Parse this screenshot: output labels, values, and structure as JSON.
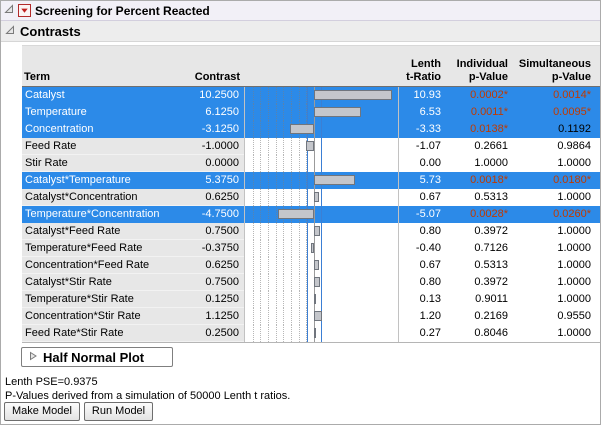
{
  "colors": {
    "selection_blue": "#2C8AE8",
    "significant_orange": "#C03A00",
    "bar_fill": "#C4C6CB",
    "bar_border": "#70757D",
    "ref_line_blue": "#3B7FD4"
  },
  "title_bar": {
    "title": "Screening for Percent Reacted"
  },
  "sections": {
    "contrasts_title": "Contrasts",
    "half_normal_plot_title": "Half Normal Plot"
  },
  "table": {
    "headers": {
      "term": "Term",
      "contrast": "Contrast",
      "lenth_t_ratio": "Lenth\nt-Ratio",
      "individual_p_value": "Individual\np-Value",
      "simultaneous_p_value": "Simultaneous\np-Value"
    },
    "chart": {
      "type": "bar",
      "orientation": "horizontal",
      "xmin": -9,
      "xmax": 11,
      "gridlines": [
        -8,
        -7,
        -6,
        -5,
        -4,
        -3,
        -2,
        -1
      ],
      "ref_lines": [
        -0.9375,
        0.9375
      ],
      "zero_line": 0
    },
    "rows": [
      {
        "term": "Catalyst",
        "contrast": "10.2500",
        "value": 10.25,
        "t_ratio": "10.93",
        "individual_p": "0.0002*",
        "simultaneous_p": "0.0014*",
        "selected": true,
        "ip_sig": true,
        "sp_sig": true
      },
      {
        "term": "Temperature",
        "contrast": "6.1250",
        "value": 6.125,
        "t_ratio": "6.53",
        "individual_p": "0.0011*",
        "simultaneous_p": "0.0095*",
        "selected": true,
        "ip_sig": true,
        "sp_sig": true
      },
      {
        "term": "Concentration",
        "contrast": "-3.1250",
        "value": -3.125,
        "t_ratio": "-3.33",
        "individual_p": "0.0138*",
        "simultaneous_p": "0.1192",
        "selected": true,
        "ip_sig": true,
        "sp_sig": false
      },
      {
        "term": "Feed Rate",
        "contrast": "-1.0000",
        "value": -1.0,
        "t_ratio": "-1.07",
        "individual_p": "0.2661",
        "simultaneous_p": "0.9864",
        "selected": false,
        "ip_sig": false,
        "sp_sig": false
      },
      {
        "term": "Stir Rate",
        "contrast": "0.0000",
        "value": 0.0,
        "t_ratio": "0.00",
        "individual_p": "1.0000",
        "simultaneous_p": "1.0000",
        "selected": false,
        "ip_sig": false,
        "sp_sig": false
      },
      {
        "term": "Catalyst*Temperature",
        "contrast": "5.3750",
        "value": 5.375,
        "t_ratio": "5.73",
        "individual_p": "0.0018*",
        "simultaneous_p": "0.0180*",
        "selected": true,
        "ip_sig": true,
        "sp_sig": true
      },
      {
        "term": "Catalyst*Concentration",
        "contrast": "0.6250",
        "value": 0.625,
        "t_ratio": "0.67",
        "individual_p": "0.5313",
        "simultaneous_p": "1.0000",
        "selected": false,
        "ip_sig": false,
        "sp_sig": false
      },
      {
        "term": "Temperature*Concentration",
        "contrast": "-4.7500",
        "value": -4.75,
        "t_ratio": "-5.07",
        "individual_p": "0.0028*",
        "simultaneous_p": "0.0260*",
        "selected": true,
        "ip_sig": true,
        "sp_sig": true
      },
      {
        "term": "Catalyst*Feed Rate",
        "contrast": "0.7500",
        "value": 0.75,
        "t_ratio": "0.80",
        "individual_p": "0.3972",
        "simultaneous_p": "1.0000",
        "selected": false,
        "ip_sig": false,
        "sp_sig": false
      },
      {
        "term": "Temperature*Feed Rate",
        "contrast": "-0.3750",
        "value": -0.375,
        "t_ratio": "-0.40",
        "individual_p": "0.7126",
        "simultaneous_p": "1.0000",
        "selected": false,
        "ip_sig": false,
        "sp_sig": false
      },
      {
        "term": "Concentration*Feed Rate",
        "contrast": "0.6250",
        "value": 0.625,
        "t_ratio": "0.67",
        "individual_p": "0.5313",
        "simultaneous_p": "1.0000",
        "selected": false,
        "ip_sig": false,
        "sp_sig": false
      },
      {
        "term": "Catalyst*Stir Rate",
        "contrast": "0.7500",
        "value": 0.75,
        "t_ratio": "0.80",
        "individual_p": "0.3972",
        "simultaneous_p": "1.0000",
        "selected": false,
        "ip_sig": false,
        "sp_sig": false
      },
      {
        "term": "Temperature*Stir Rate",
        "contrast": "0.1250",
        "value": 0.125,
        "t_ratio": "0.13",
        "individual_p": "0.9011",
        "simultaneous_p": "1.0000",
        "selected": false,
        "ip_sig": false,
        "sp_sig": false
      },
      {
        "term": "Concentration*Stir Rate",
        "contrast": "1.1250",
        "value": 1.125,
        "t_ratio": "1.20",
        "individual_p": "0.2169",
        "simultaneous_p": "0.9550",
        "selected": false,
        "ip_sig": false,
        "sp_sig": false
      },
      {
        "term": "Feed Rate*Stir Rate",
        "contrast": "0.2500",
        "value": 0.25,
        "t_ratio": "0.27",
        "individual_p": "0.8046",
        "simultaneous_p": "1.0000",
        "selected": false,
        "ip_sig": false,
        "sp_sig": false
      }
    ]
  },
  "footer": {
    "lenth_pse": "Lenth PSE=0.9375",
    "pvalue_note": "P-Values derived from a simulation of 50000 Lenth t ratios.",
    "make_model_label": "Make Model",
    "run_model_label": "Run Model"
  }
}
